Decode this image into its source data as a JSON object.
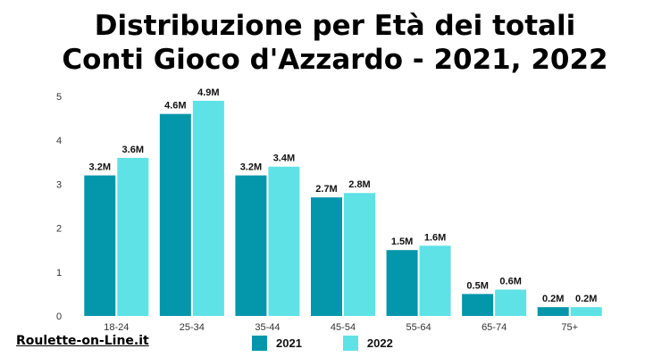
{
  "title_line1": "Distribuzione per Età dei totali",
  "title_line2": "Conti Gioco d'Azzardo - 2021, 2022",
  "watermark": "Roulette-on-Line.it",
  "chart_data": {
    "type": "bar",
    "title": "Distribuzione per Età dei totali Conti Gioco d'Azzardo - 2021, 2022",
    "categories": [
      "18-24",
      "25-34",
      "35-44",
      "45-54",
      "55-64",
      "65-74",
      "75+"
    ],
    "series": [
      {
        "name": "2021",
        "color": "#0496ab",
        "values": [
          3.2,
          4.6,
          3.2,
          2.7,
          1.5,
          0.5,
          0.2
        ],
        "labels": [
          "3.2M",
          "4.6M",
          "3.2M",
          "2.7M",
          "1.5M",
          "0.5M",
          "0.2M"
        ]
      },
      {
        "name": "2022",
        "color": "#5ee2e6",
        "values": [
          3.6,
          4.9,
          3.4,
          2.8,
          1.6,
          0.6,
          0.2
        ],
        "labels": [
          "3.6M",
          "4.9M",
          "3.4M",
          "2.8M",
          "1.6M",
          "0.6M",
          "0.2M"
        ]
      }
    ],
    "yticks": [
      "0",
      "1",
      "2",
      "3",
      "4",
      "5"
    ],
    "ylim": [
      0,
      5
    ],
    "grid": false,
    "legend_position": "bottom"
  }
}
